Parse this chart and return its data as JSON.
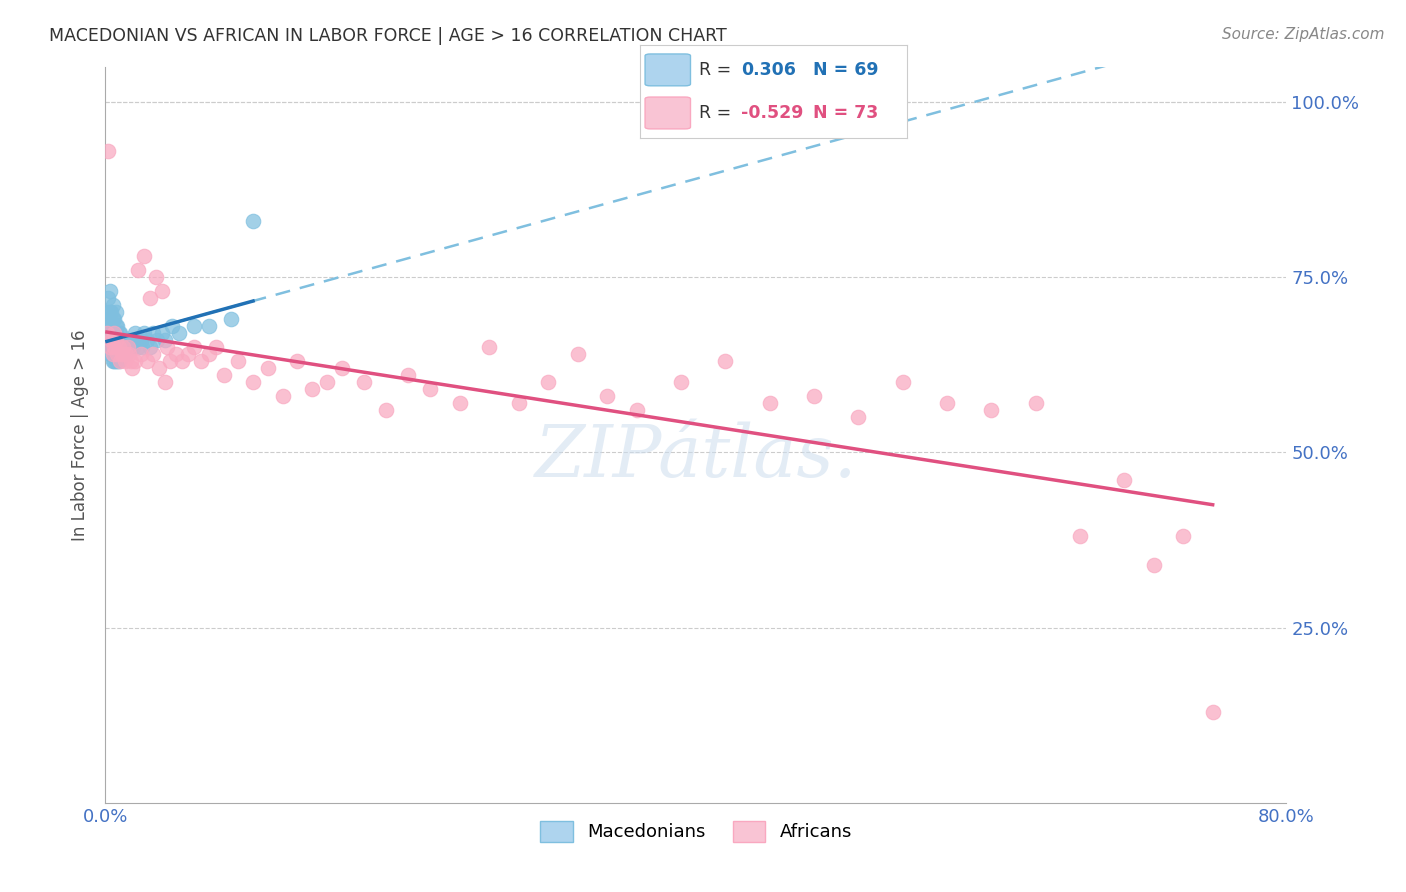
{
  "title": "MACEDONIAN VS AFRICAN IN LABOR FORCE | AGE > 16 CORRELATION CHART",
  "source": "Source: ZipAtlas.com",
  "ylabel": "In Labor Force | Age > 16",
  "xlim": [
    0.0,
    0.8
  ],
  "ylim": [
    0.0,
    1.05
  ],
  "mac_color": "#7fbfdf",
  "afr_color": "#f9a8c0",
  "mac_line_color": "#2171b5",
  "afr_line_color": "#e05080",
  "mac_dash_color": "#7fbfdf",
  "background_color": "#ffffff",
  "grid_color": "#cccccc",
  "mac_R": 0.306,
  "mac_N": 69,
  "afr_R": -0.529,
  "afr_N": 73,
  "mac_x": [
    0.001,
    0.001,
    0.001,
    0.002,
    0.002,
    0.002,
    0.002,
    0.003,
    0.003,
    0.003,
    0.003,
    0.003,
    0.004,
    0.004,
    0.004,
    0.004,
    0.005,
    0.005,
    0.005,
    0.005,
    0.005,
    0.006,
    0.006,
    0.006,
    0.006,
    0.007,
    0.007,
    0.007,
    0.007,
    0.007,
    0.008,
    0.008,
    0.008,
    0.008,
    0.009,
    0.009,
    0.009,
    0.01,
    0.01,
    0.01,
    0.011,
    0.011,
    0.012,
    0.012,
    0.013,
    0.013,
    0.014,
    0.015,
    0.016,
    0.017,
    0.018,
    0.019,
    0.02,
    0.022,
    0.024,
    0.025,
    0.026,
    0.028,
    0.03,
    0.032,
    0.035,
    0.038,
    0.04,
    0.045,
    0.05,
    0.06,
    0.07,
    0.085,
    0.1
  ],
  "mac_y": [
    0.67,
    0.68,
    0.7,
    0.65,
    0.67,
    0.69,
    0.72,
    0.64,
    0.66,
    0.68,
    0.7,
    0.73,
    0.64,
    0.66,
    0.68,
    0.7,
    0.63,
    0.65,
    0.67,
    0.69,
    0.71,
    0.63,
    0.65,
    0.67,
    0.69,
    0.63,
    0.65,
    0.67,
    0.68,
    0.7,
    0.63,
    0.65,
    0.66,
    0.68,
    0.63,
    0.65,
    0.67,
    0.64,
    0.65,
    0.67,
    0.64,
    0.66,
    0.64,
    0.66,
    0.64,
    0.66,
    0.65,
    0.65,
    0.66,
    0.65,
    0.66,
    0.65,
    0.67,
    0.65,
    0.66,
    0.65,
    0.67,
    0.66,
    0.65,
    0.67,
    0.66,
    0.67,
    0.66,
    0.68,
    0.67,
    0.68,
    0.68,
    0.69,
    0.83
  ],
  "afr_x": [
    0.001,
    0.002,
    0.003,
    0.004,
    0.005,
    0.006,
    0.006,
    0.007,
    0.008,
    0.009,
    0.01,
    0.011,
    0.012,
    0.013,
    0.014,
    0.015,
    0.016,
    0.017,
    0.018,
    0.02,
    0.022,
    0.024,
    0.026,
    0.028,
    0.03,
    0.032,
    0.034,
    0.036,
    0.038,
    0.04,
    0.042,
    0.044,
    0.048,
    0.052,
    0.056,
    0.06,
    0.065,
    0.07,
    0.075,
    0.08,
    0.09,
    0.1,
    0.11,
    0.12,
    0.13,
    0.14,
    0.15,
    0.16,
    0.175,
    0.19,
    0.205,
    0.22,
    0.24,
    0.26,
    0.28,
    0.3,
    0.32,
    0.34,
    0.36,
    0.39,
    0.42,
    0.45,
    0.48,
    0.51,
    0.54,
    0.57,
    0.6,
    0.63,
    0.66,
    0.69,
    0.71,
    0.73,
    0.75
  ],
  "afr_y": [
    0.67,
    0.93,
    0.65,
    0.66,
    0.64,
    0.67,
    0.65,
    0.66,
    0.64,
    0.65,
    0.63,
    0.64,
    0.65,
    0.63,
    0.64,
    0.65,
    0.64,
    0.63,
    0.62,
    0.63,
    0.76,
    0.64,
    0.78,
    0.63,
    0.72,
    0.64,
    0.75,
    0.62,
    0.73,
    0.6,
    0.65,
    0.63,
    0.64,
    0.63,
    0.64,
    0.65,
    0.63,
    0.64,
    0.65,
    0.61,
    0.63,
    0.6,
    0.62,
    0.58,
    0.63,
    0.59,
    0.6,
    0.62,
    0.6,
    0.56,
    0.61,
    0.59,
    0.57,
    0.65,
    0.57,
    0.6,
    0.64,
    0.58,
    0.56,
    0.6,
    0.63,
    0.57,
    0.58,
    0.55,
    0.6,
    0.57,
    0.56,
    0.57,
    0.38,
    0.46,
    0.34,
    0.38,
    0.13
  ]
}
